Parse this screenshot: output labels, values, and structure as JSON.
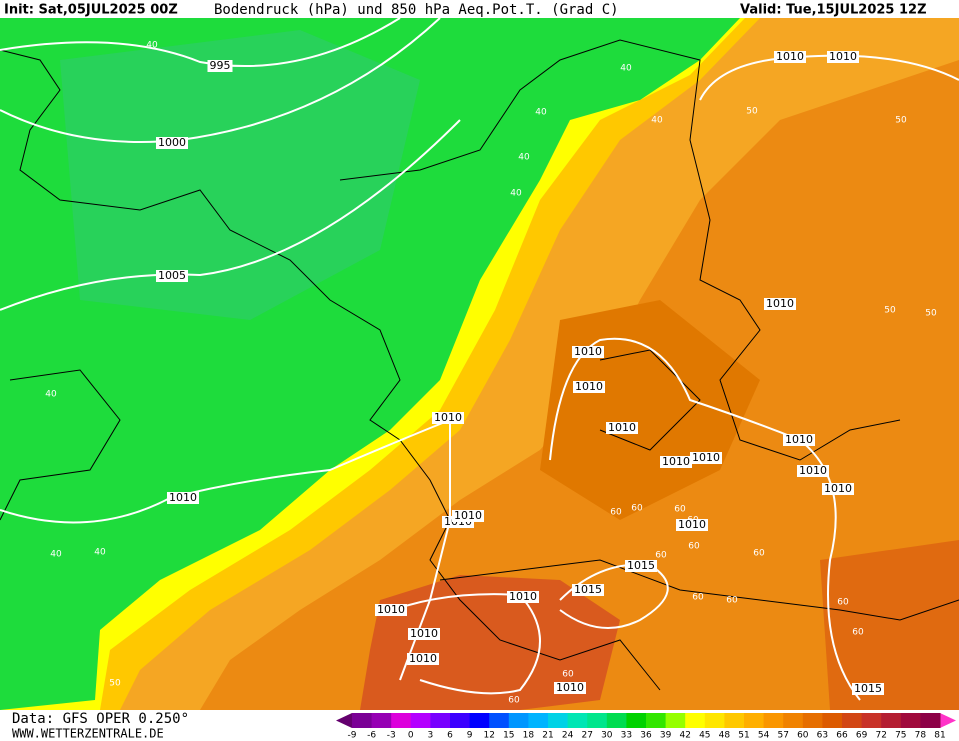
{
  "header": {
    "init": "Init: Sat,05JUL2025 00Z",
    "title": "Bodendruck (hPa) und 850 hPa Aeq.Pot.T. (Grad C)",
    "valid": "Valid: Tue,15JUL2025 12Z"
  },
  "footer": {
    "data": "Data: GFS OPER 0.250°",
    "site": "WWW.WETTERZENTRALE.DE"
  },
  "colorbar": {
    "ticks": [
      -9,
      -6,
      -3,
      0,
      3,
      6,
      9,
      12,
      15,
      18,
      21,
      24,
      27,
      30,
      33,
      36,
      39,
      42,
      45,
      48,
      51,
      54,
      57,
      60,
      63,
      66,
      69,
      72,
      75,
      78,
      81
    ],
    "colors": [
      "#7a0096",
      "#9600b4",
      "#dc00dc",
      "#b400ff",
      "#7800ff",
      "#3c00ff",
      "#0000ff",
      "#0050ff",
      "#0096ff",
      "#00b4ff",
      "#00d2e6",
      "#00e6b4",
      "#00e68c",
      "#00dc50",
      "#00d200",
      "#32e600",
      "#96ff00",
      "#ffff00",
      "#ffe600",
      "#ffc800",
      "#ffaf00",
      "#fa9600",
      "#f08200",
      "#e66e00",
      "#dc5a00",
      "#d24614",
      "#c83228",
      "#b41e32",
      "#a00a3c",
      "#8c0046"
    ],
    "low_color": "#64006e",
    "high_color": "#ff32c8"
  },
  "isobar_labels": [
    "995",
    "1000",
    "1005",
    "1010",
    "1010",
    "1010",
    "1010",
    "1010",
    "1010",
    "1010",
    "1010",
    "1010",
    "1010",
    "1010",
    "1010",
    "1010",
    "1010",
    "1010",
    "1010",
    "1010",
    "1010",
    "1010",
    "1010",
    "1010",
    "1015",
    "1015",
    "1015"
  ],
  "isotherm_labels": [
    "40",
    "40",
    "40",
    "40",
    "40",
    "40",
    "40",
    "40",
    "40",
    "50",
    "50",
    "50",
    "50",
    "50",
    "60",
    "60",
    "60",
    "60",
    "60",
    "60",
    "60",
    "60",
    "60",
    "60",
    "60",
    "60",
    "60"
  ]
}
